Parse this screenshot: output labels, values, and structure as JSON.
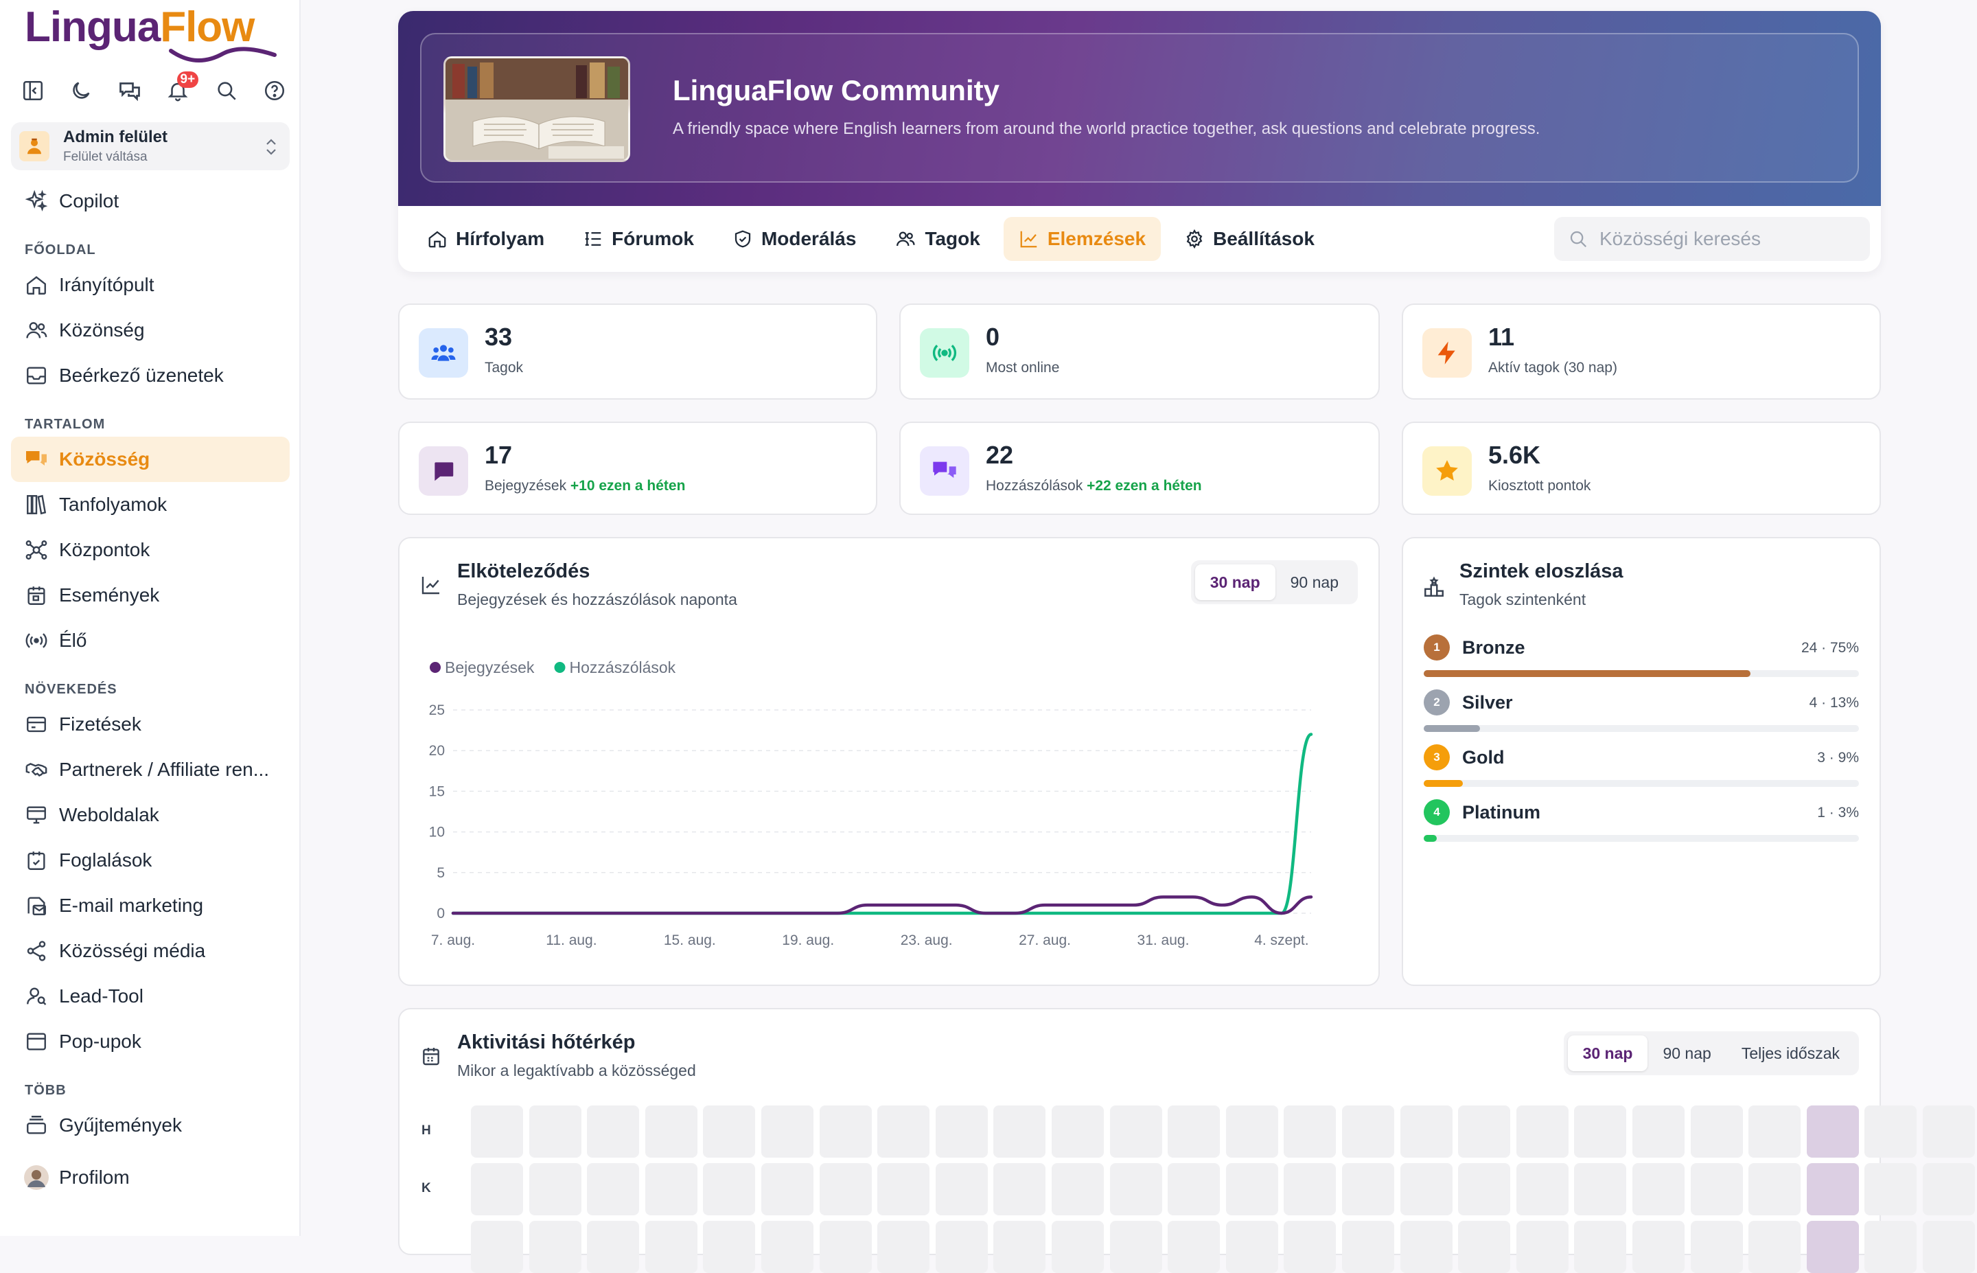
{
  "brand": {
    "part1": "Lingua",
    "part2": "Flow"
  },
  "topbar": {
    "notification_badge": "9+"
  },
  "switcher": {
    "title": "Admin felület",
    "subtitle": "Felület váltása"
  },
  "nav": {
    "copilot": "Copilot",
    "sections": [
      {
        "heading": "FŐOLDAL",
        "items": [
          "Irányítópult",
          "Közönség",
          "Beérkező üzenetek"
        ]
      },
      {
        "heading": "TARTALOM",
        "items": [
          "Közösség",
          "Tanfolyamok",
          "Központok",
          "Események",
          "Élő"
        ]
      },
      {
        "heading": "NÖVEKEDÉS",
        "items": [
          "Fizetések",
          "Partnerek / Affiliate ren...",
          "Weboldalak",
          "Foglalások",
          "E-mail marketing",
          "Közösségi média",
          "Lead-Tool",
          "Pop-upok"
        ]
      },
      {
        "heading": "TÖBB",
        "items": [
          "Gyűjtemények",
          "Profilom"
        ]
      }
    ],
    "active_item": "Közösség"
  },
  "community": {
    "title": "LinguaFlow Community",
    "description": "A friendly space where English learners from around the world practice together, ask questions and celebrate progress."
  },
  "tabs": [
    "Hírfolyam",
    "Fórumok",
    "Moderálás",
    "Tagok",
    "Elemzések",
    "Beállítások"
  ],
  "active_tab": "Elemzések",
  "search": {
    "placeholder": "Közösségi keresés"
  },
  "stats": [
    {
      "value": "33",
      "label": "Tagok",
      "delta": ""
    },
    {
      "value": "0",
      "label": "Most online",
      "delta": ""
    },
    {
      "value": "11",
      "label": "Aktív tagok (30 nap)",
      "delta": ""
    },
    {
      "value": "17",
      "label": "Bejegyzések",
      "delta": "+10 ezen a héten"
    },
    {
      "value": "22",
      "label": "Hozzászólások",
      "delta": "+22 ezen a héten"
    },
    {
      "value": "5.6K",
      "label": "Kiosztott pontok",
      "delta": ""
    }
  ],
  "engagement": {
    "title": "Elköteleződés",
    "subtitle": "Bejegyzések és hozzászólások naponta",
    "range_options": [
      "30 nap",
      "90 nap"
    ],
    "selected_range": "30 nap"
  },
  "chart_data": {
    "type": "line",
    "x": [
      "7. aug.",
      "8. aug.",
      "9. aug.",
      "10. aug.",
      "11. aug.",
      "12. aug.",
      "13. aug.",
      "14. aug.",
      "15. aug.",
      "16. aug.",
      "17. aug.",
      "18. aug.",
      "19. aug.",
      "20. aug.",
      "21. aug.",
      "22. aug.",
      "23. aug.",
      "24. aug.",
      "25. aug.",
      "26. aug.",
      "27. aug.",
      "28. aug.",
      "29. aug.",
      "30. aug.",
      "31. aug.",
      "1. szept.",
      "2. szept.",
      "3. szept.",
      "4. szept.",
      "5. szept."
    ],
    "x_tick_labels": [
      "7. aug.",
      "11. aug.",
      "15. aug.",
      "19. aug.",
      "23. aug.",
      "27. aug.",
      "31. aug.",
      "4. szept."
    ],
    "series": [
      {
        "name": "Bejegyzések",
        "color": "#5b2474",
        "values": [
          0,
          0,
          0,
          0,
          0,
          0,
          0,
          0,
          0,
          0,
          0,
          0,
          0,
          0,
          1,
          1,
          1,
          1,
          0,
          0,
          1,
          1,
          1,
          1,
          2,
          2,
          1,
          2,
          0,
          2
        ]
      },
      {
        "name": "Hozzászólások",
        "color": "#10b981",
        "values": [
          0,
          0,
          0,
          0,
          0,
          0,
          0,
          0,
          0,
          0,
          0,
          0,
          0,
          0,
          0,
          0,
          0,
          0,
          0,
          0,
          0,
          0,
          0,
          0,
          0,
          0,
          0,
          0,
          0,
          22
        ]
      }
    ],
    "ylim": [
      0,
      25
    ],
    "yticks": [
      0,
      5,
      10,
      15,
      20,
      25
    ],
    "grid": true,
    "legend": "top-left",
    "xlabel": "",
    "ylabel": ""
  },
  "levels": {
    "title": "Szintek eloszlása",
    "subtitle": "Tagok szintenként",
    "items": [
      {
        "rank": "1",
        "name": "Bronze",
        "count_text": "24 · 75%",
        "percent": 75,
        "color": "#b8703a"
      },
      {
        "rank": "2",
        "name": "Silver",
        "count_text": "4 · 13%",
        "percent": 13,
        "color": "#9ca3af"
      },
      {
        "rank": "3",
        "name": "Gold",
        "count_text": "3 · 9%",
        "percent": 9,
        "color": "#f59e0b"
      },
      {
        "rank": "4",
        "name": "Platinum",
        "count_text": "1 · 3%",
        "percent": 3,
        "color": "#22c55e"
      }
    ]
  },
  "heatmap": {
    "title": "Aktivitási hőtérkép",
    "subtitle": "Mikor a legaktívabb a közösséged",
    "range_options": [
      "30 nap",
      "90 nap",
      "Teljes időszak"
    ],
    "selected_range": "30 nap",
    "row_labels": [
      "H",
      "K",
      ""
    ],
    "highlight_color": "#dccfe3",
    "rows": [
      [
        0,
        0,
        0,
        0,
        0,
        0,
        0,
        0,
        0,
        0,
        0,
        0,
        0,
        0,
        0,
        0,
        0,
        0,
        0,
        0,
        0,
        0,
        0,
        1,
        0,
        0
      ],
      [
        0,
        0,
        0,
        0,
        0,
        0,
        0,
        0,
        0,
        0,
        0,
        0,
        0,
        0,
        0,
        0,
        0,
        0,
        0,
        0,
        0,
        0,
        0,
        1,
        0,
        0
      ],
      [
        0,
        0,
        0,
        0,
        0,
        0,
        0,
        0,
        0,
        0,
        0,
        0,
        0,
        0,
        0,
        0,
        0,
        0,
        0,
        0,
        0,
        0,
        0,
        1,
        0,
        0
      ]
    ]
  },
  "colors": {
    "brand_purple": "#5b2474",
    "brand_orange": "#e88a12",
    "success": "#16a34a"
  }
}
